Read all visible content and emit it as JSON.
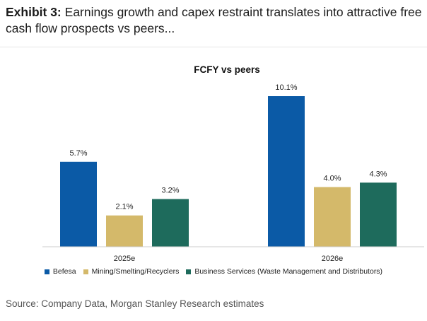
{
  "exhibit": {
    "prefix": "Exhibit 3:",
    "title": "Earnings growth and capex restraint translates into attractive free cash flow prospects vs peers..."
  },
  "chart_data": {
    "type": "bar",
    "title": "FCFY vs peers",
    "categories": [
      "2025e",
      "2026e"
    ],
    "series": [
      {
        "name": "Befesa",
        "values": [
          5.7,
          10.1
        ],
        "labels": [
          "5.7%",
          "10.1%"
        ],
        "color": "#0b5aa6"
      },
      {
        "name": "Mining/Smelting/Recyclers",
        "values": [
          2.1,
          4.0
        ],
        "labels": [
          "2.1%",
          "4.0%"
        ],
        "color": "#d4b96a"
      },
      {
        "name": "Business Services (Waste Management and Distributors)",
        "values": [
          3.2,
          4.3
        ],
        "labels": [
          "3.2%",
          "4.3%"
        ],
        "color": "#1e6b5c"
      }
    ],
    "unit": "%",
    "xlabel": "",
    "ylabel": "",
    "ylim": [
      0,
      10.1
    ],
    "grid": false,
    "legend_position": "bottom"
  },
  "source": "Source: Company Data, Morgan Stanley Research estimates"
}
